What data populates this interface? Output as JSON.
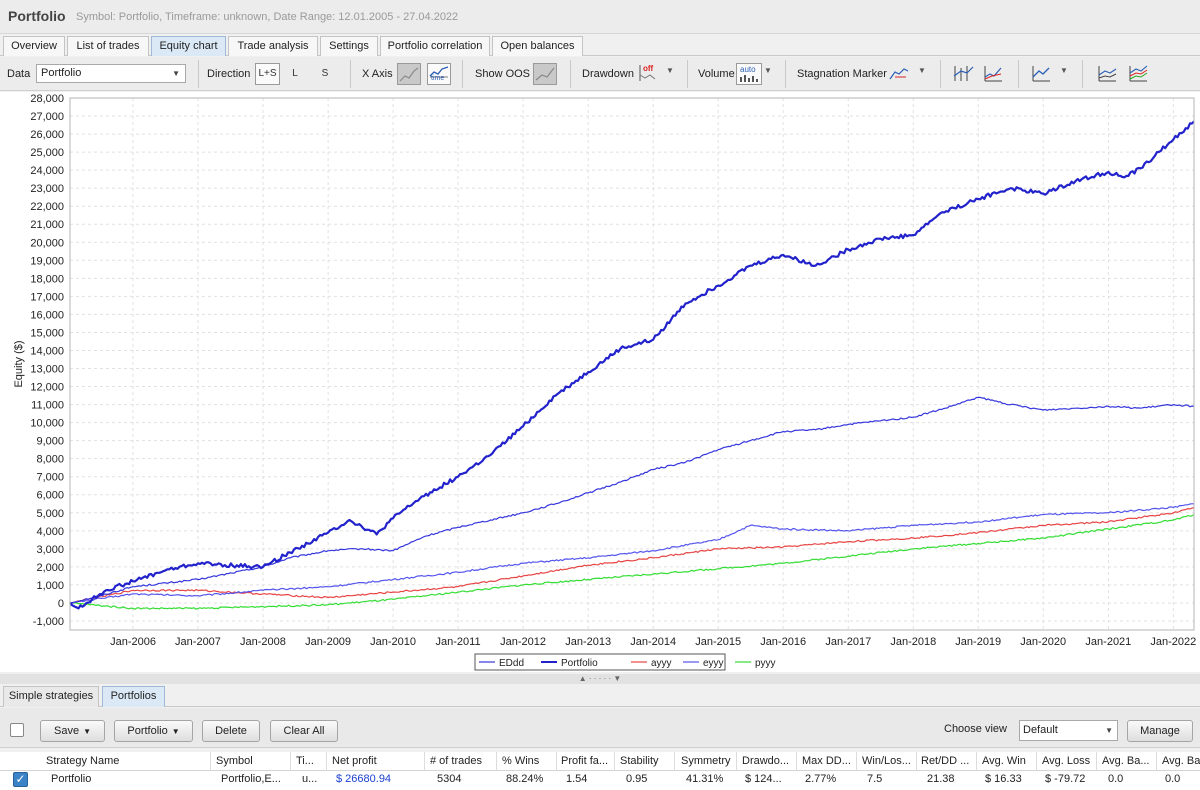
{
  "window": {
    "title": "Portfolio",
    "subtitle": "Symbol: Portfolio, Timeframe: unknown, Date Range: 12.01.2005 - 27.04.2022"
  },
  "tabs": [
    {
      "label": "Overview"
    },
    {
      "label": "List of trades"
    },
    {
      "label": "Equity chart",
      "active": true
    },
    {
      "label": "Trade analysis"
    },
    {
      "label": "Settings"
    },
    {
      "label": "Portfolio correlation"
    },
    {
      "label": "Open balances"
    }
  ],
  "toolbar": {
    "data_label": "Data",
    "data_value": "Portfolio",
    "direction_label": "Direction",
    "direction_options": [
      "L+S",
      "L",
      "S"
    ],
    "direction_selected": "L+S",
    "xaxis_label": "X Axis",
    "xaxis_time_label": "time",
    "show_oos_label": "Show OOS",
    "drawdown_label": "Drawdown",
    "drawdown_state": "off",
    "volume_label": "Volume",
    "volume_state": "auto",
    "stagnation_label": "Stagnation Marker"
  },
  "chart_data": {
    "type": "line",
    "ylabel": "Equity ($)",
    "xlabel": "",
    "title": "",
    "ylim": [
      -1500,
      28000
    ],
    "y_ticks": [
      -1000,
      0,
      1000,
      2000,
      3000,
      4000,
      5000,
      6000,
      7000,
      8000,
      9000,
      10000,
      11000,
      12000,
      13000,
      14000,
      15000,
      16000,
      17000,
      18000,
      19000,
      20000,
      21000,
      22000,
      23000,
      24000,
      25000,
      26000,
      27000,
      28000
    ],
    "y_tick_labels": [
      "-1,000",
      "0",
      "1,000",
      "2,000",
      "3,000",
      "4,000",
      "5,000",
      "6,000",
      "7,000",
      "8,000",
      "9,000",
      "10,000",
      "11,000",
      "12,000",
      "13,000",
      "14,000",
      "15,000",
      "16,000",
      "17,000",
      "18,000",
      "19,000",
      "20,000",
      "21,000",
      "22,000",
      "23,000",
      "24,000",
      "25,000",
      "26,000",
      "27,000",
      "28,000"
    ],
    "x_tick_labels": [
      "Jan-2006",
      "Jan-2007",
      "Jan-2008",
      "Jan-2009",
      "Jan-2010",
      "Jan-2011",
      "Jan-2012",
      "Jan-2013",
      "Jan-2014",
      "Jan-2015",
      "Jan-2016",
      "Jan-2017",
      "Jan-2018",
      "Jan-2019",
      "Jan-2020",
      "Jan-2021",
      "Jan-2022"
    ],
    "x_start": "2005-01-12",
    "x_end": "2022-04-27",
    "grid": true,
    "legend_position": "bottom-center",
    "series": [
      {
        "name": "EDdd",
        "color": "#3535dd",
        "points": [
          [
            "2005-01-12",
            0
          ],
          [
            "2005-07-01",
            400
          ],
          [
            "2006-01-01",
            900
          ],
          [
            "2007-01-01",
            1300
          ],
          [
            "2008-01-01",
            2000
          ],
          [
            "2008-06-01",
            2500
          ],
          [
            "2009-01-01",
            2900
          ],
          [
            "2009-07-01",
            3000
          ],
          [
            "2010-01-01",
            2900
          ],
          [
            "2010-07-01",
            3700
          ],
          [
            "2011-01-01",
            4200
          ],
          [
            "2011-07-01",
            4600
          ],
          [
            "2012-01-01",
            5000
          ],
          [
            "2012-07-01",
            5500
          ],
          [
            "2013-01-01",
            6100
          ],
          [
            "2013-07-01",
            6700
          ],
          [
            "2014-01-01",
            7400
          ],
          [
            "2014-07-01",
            7800
          ],
          [
            "2015-01-01",
            8500
          ],
          [
            "2015-07-01",
            9000
          ],
          [
            "2016-01-01",
            9500
          ],
          [
            "2016-07-01",
            9600
          ],
          [
            "2017-01-01",
            9900
          ],
          [
            "2017-07-01",
            10100
          ],
          [
            "2018-01-01",
            10300
          ],
          [
            "2018-07-01",
            10800
          ],
          [
            "2019-01-01",
            11400
          ],
          [
            "2019-07-01",
            11000
          ],
          [
            "2020-01-01",
            10700
          ],
          [
            "2020-07-01",
            10800
          ],
          [
            "2021-01-01",
            10900
          ],
          [
            "2021-07-01",
            10800
          ],
          [
            "2022-01-01",
            11000
          ],
          [
            "2022-04-27",
            10900
          ]
        ]
      },
      {
        "name": "Portfolio",
        "color": "#2222cc",
        "points": [
          [
            "2005-01-12",
            0
          ],
          [
            "2005-03-01",
            -300
          ],
          [
            "2005-08-01",
            700
          ],
          [
            "2006-01-01",
            1200
          ],
          [
            "2006-07-01",
            1800
          ],
          [
            "2007-01-01",
            2200
          ],
          [
            "2007-06-01",
            2100
          ],
          [
            "2008-01-01",
            2000
          ],
          [
            "2008-06-01",
            2800
          ],
          [
            "2009-01-01",
            3900
          ],
          [
            "2009-05-01",
            4600
          ],
          [
            "2009-10-01",
            3800
          ],
          [
            "2010-01-01",
            4700
          ],
          [
            "2010-06-01",
            5800
          ],
          [
            "2011-01-01",
            7000
          ],
          [
            "2011-07-01",
            8200
          ],
          [
            "2012-01-01",
            9800
          ],
          [
            "2012-07-01",
            11500
          ],
          [
            "2013-01-01",
            12800
          ],
          [
            "2013-07-01",
            14100
          ],
          [
            "2014-01-01",
            14600
          ],
          [
            "2014-07-01",
            16600
          ],
          [
            "2015-01-01",
            17600
          ],
          [
            "2015-07-01",
            18700
          ],
          [
            "2016-01-01",
            19300
          ],
          [
            "2016-07-01",
            18700
          ],
          [
            "2017-01-01",
            19600
          ],
          [
            "2017-07-01",
            20200
          ],
          [
            "2018-01-01",
            20400
          ],
          [
            "2018-06-01",
            21600
          ],
          [
            "2019-01-01",
            22400
          ],
          [
            "2019-07-01",
            23000
          ],
          [
            "2020-01-01",
            22700
          ],
          [
            "2020-07-01",
            23400
          ],
          [
            "2021-01-01",
            23900
          ],
          [
            "2021-04-01",
            23600
          ],
          [
            "2021-07-01",
            24100
          ],
          [
            "2022-01-01",
            25700
          ],
          [
            "2022-04-27",
            26700
          ]
        ]
      },
      {
        "name": "ayyy",
        "color": "#e84545",
        "points": [
          [
            "2005-01-12",
            0
          ],
          [
            "2006-01-01",
            700
          ],
          [
            "2007-01-01",
            700
          ],
          [
            "2008-01-01",
            500
          ],
          [
            "2009-01-01",
            300
          ],
          [
            "2010-01-01",
            600
          ],
          [
            "2011-01-01",
            900
          ],
          [
            "2012-01-01",
            1500
          ],
          [
            "2013-01-01",
            2100
          ],
          [
            "2014-01-01",
            2500
          ],
          [
            "2015-01-01",
            3000
          ],
          [
            "2016-01-01",
            3100
          ],
          [
            "2017-01-01",
            3400
          ],
          [
            "2018-01-01",
            3600
          ],
          [
            "2019-01-01",
            3900
          ],
          [
            "2020-01-01",
            4300
          ],
          [
            "2021-01-01",
            4500
          ],
          [
            "2022-01-01",
            5000
          ],
          [
            "2022-04-27",
            5300
          ]
        ]
      },
      {
        "name": "eyyy",
        "color": "#5555ee",
        "points": [
          [
            "2005-01-12",
            0
          ],
          [
            "2006-01-01",
            500
          ],
          [
            "2007-01-01",
            400
          ],
          [
            "2008-01-01",
            700
          ],
          [
            "2009-01-01",
            900
          ],
          [
            "2010-01-01",
            1300
          ],
          [
            "2011-01-01",
            1700
          ],
          [
            "2012-01-01",
            2200
          ],
          [
            "2013-01-01",
            2500
          ],
          [
            "2014-01-01",
            2900
          ],
          [
            "2015-01-01",
            3500
          ],
          [
            "2015-07-01",
            4300
          ],
          [
            "2016-01-01",
            4100
          ],
          [
            "2017-01-01",
            4000
          ],
          [
            "2018-01-01",
            4300
          ],
          [
            "2019-01-01",
            4500
          ],
          [
            "2020-01-01",
            4900
          ],
          [
            "2021-01-01",
            5000
          ],
          [
            "2022-01-01",
            5300
          ],
          [
            "2022-04-27",
            5500
          ]
        ]
      },
      {
        "name": "pyyy",
        "color": "#33dd33",
        "points": [
          [
            "2005-01-12",
            0
          ],
          [
            "2006-01-01",
            -300
          ],
          [
            "2007-01-01",
            -300
          ],
          [
            "2008-01-01",
            -200
          ],
          [
            "2009-01-01",
            -100
          ],
          [
            "2010-01-01",
            200
          ],
          [
            "2011-01-01",
            600
          ],
          [
            "2012-01-01",
            1000
          ],
          [
            "2013-01-01",
            1300
          ],
          [
            "2014-01-01",
            1600
          ],
          [
            "2015-01-01",
            1900
          ],
          [
            "2016-01-01",
            2200
          ],
          [
            "2017-01-01",
            2600
          ],
          [
            "2018-01-01",
            3000
          ],
          [
            "2019-01-01",
            3300
          ],
          [
            "2020-01-01",
            3600
          ],
          [
            "2021-01-01",
            4100
          ],
          [
            "2022-01-01",
            4600
          ],
          [
            "2022-04-27",
            4900
          ]
        ]
      }
    ]
  },
  "bottom_tabs": [
    {
      "label": "Simple strategies"
    },
    {
      "label": "Portfolios",
      "active": true
    }
  ],
  "actions": {
    "save": "Save",
    "portfolio": "Portfolio",
    "delete": "Delete",
    "clear_all": "Clear All",
    "choose_view_label": "Choose view",
    "view_value": "Default",
    "manage": "Manage"
  },
  "table": {
    "columns": [
      "Strategy Name",
      "Symbol",
      "Ti...",
      "Net profit",
      "# of trades",
      "% Wins",
      "Profit fa...",
      "Stability",
      "Symmetry",
      "Drawdo...",
      "Max DD...",
      "Win/Los...",
      "Ret/DD ...",
      "Avg. Win",
      "Avg. Loss",
      "Avg. Ba...",
      "Avg. Ba"
    ],
    "rows": [
      [
        "Portfolio",
        "Portfolio,E...",
        "u...",
        "$ 26680.94",
        "5304",
        "88.24%",
        "1.54",
        "0.95",
        "41.31%",
        "$ 124...",
        "2.77%",
        "7.5",
        "21.38",
        "$ 16.33",
        "$ -79.72",
        "0.0",
        "0.0"
      ]
    ]
  }
}
